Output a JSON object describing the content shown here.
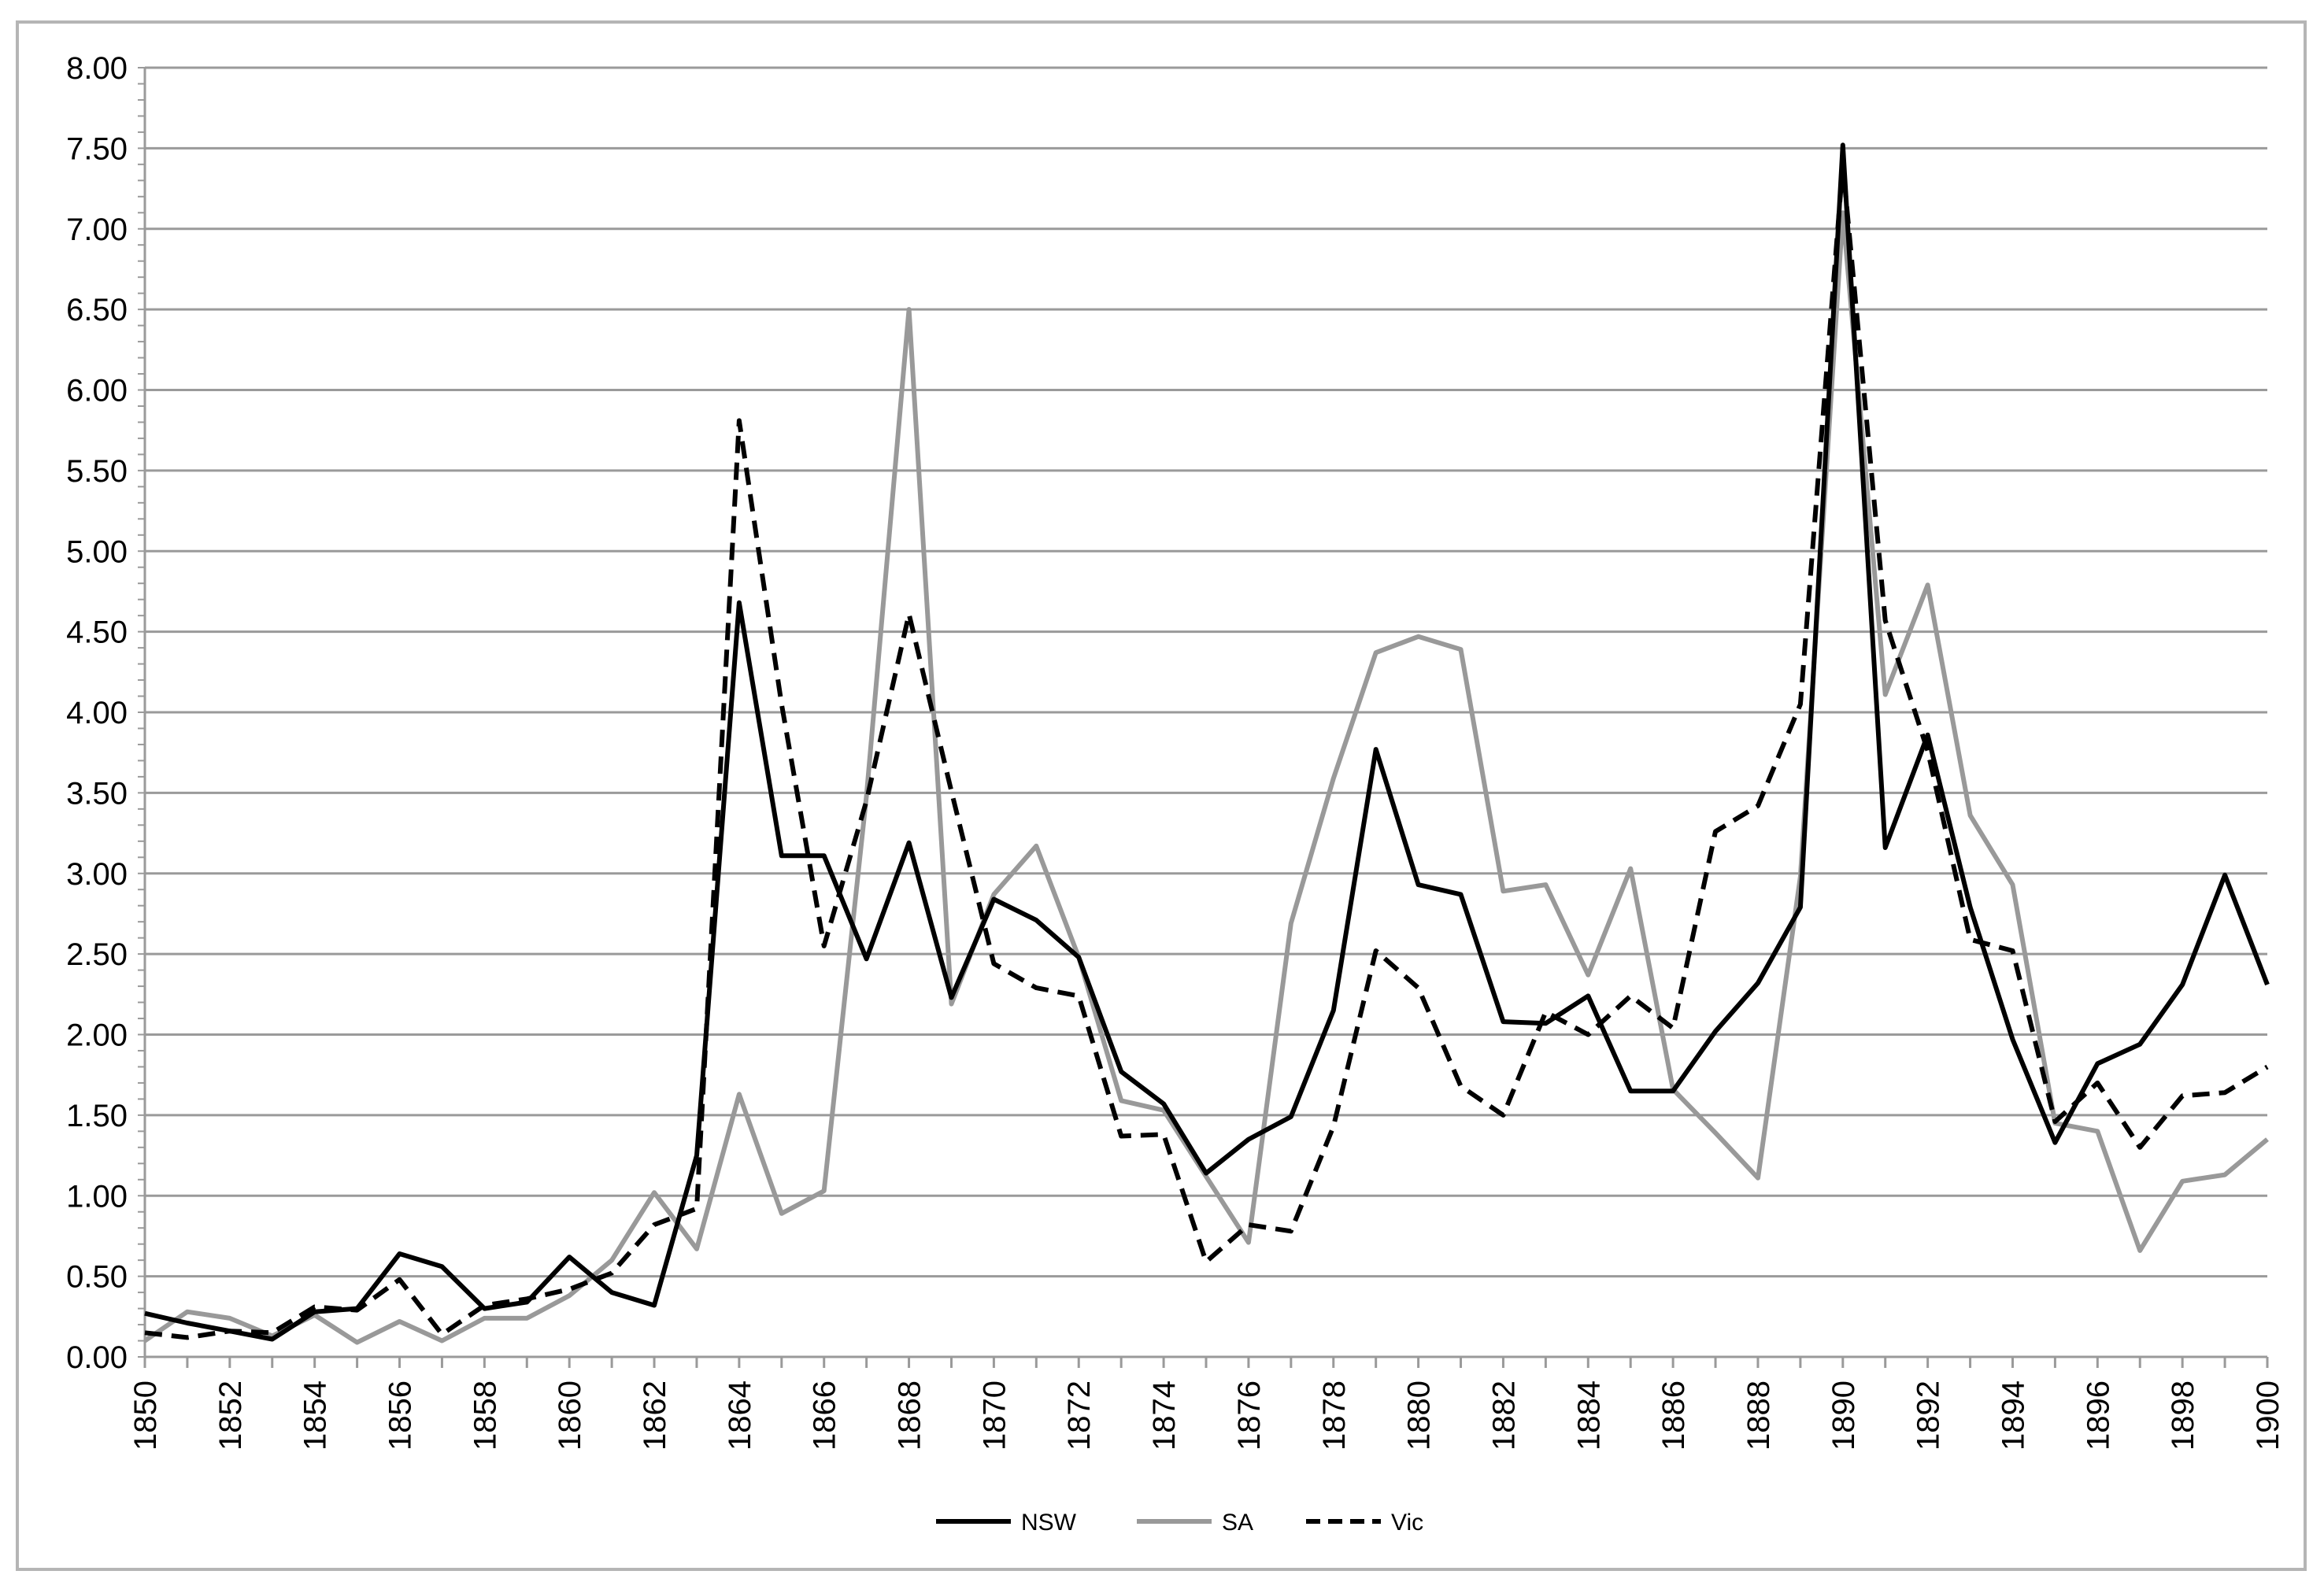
{
  "chart_data": {
    "type": "line",
    "title": "",
    "xlabel": "",
    "ylabel": "",
    "x": [
      1850,
      1851,
      1852,
      1853,
      1854,
      1855,
      1856,
      1857,
      1858,
      1859,
      1860,
      1861,
      1862,
      1863,
      1864,
      1865,
      1866,
      1867,
      1868,
      1869,
      1870,
      1871,
      1872,
      1873,
      1874,
      1875,
      1876,
      1877,
      1878,
      1879,
      1880,
      1881,
      1882,
      1883,
      1884,
      1885,
      1886,
      1887,
      1888,
      1889,
      1890,
      1891,
      1892,
      1893,
      1894,
      1895,
      1896,
      1897,
      1898,
      1899,
      1900
    ],
    "xticks": [
      "1850",
      "1852",
      "1854",
      "1856",
      "1858",
      "1860",
      "1862",
      "1864",
      "1866",
      "1868",
      "1870",
      "1872",
      "1874",
      "1876",
      "1878",
      "1880",
      "1882",
      "1884",
      "1886",
      "1888",
      "1890",
      "1892",
      "1894",
      "1896",
      "1898",
      "1900"
    ],
    "yticks": [
      "0.00",
      "0.50",
      "1.00",
      "1.50",
      "2.00",
      "2.50",
      "3.00",
      "3.50",
      "4.00",
      "4.50",
      "5.00",
      "5.50",
      "6.00",
      "6.50",
      "7.00",
      "7.50",
      "8.00"
    ],
    "ylim": [
      0,
      8
    ],
    "grid": true,
    "legend_position": "bottom",
    "series": [
      {
        "name": "NSW",
        "color": "#000000",
        "style": "solid",
        "values": [
          0.27,
          0.21,
          0.16,
          0.11,
          0.28,
          0.3,
          0.64,
          0.56,
          0.3,
          0.34,
          0.62,
          0.4,
          0.32,
          1.25,
          4.68,
          3.11,
          3.11,
          2.47,
          3.19,
          2.23,
          2.84,
          2.71,
          2.48,
          1.77,
          1.57,
          1.14,
          1.35,
          1.49,
          2.15,
          3.77,
          2.93,
          2.87,
          2.08,
          2.07,
          2.24,
          1.65,
          1.65,
          2.02,
          2.32,
          2.79,
          7.52,
          3.16,
          3.86,
          2.79,
          1.97,
          1.33,
          1.82,
          1.94,
          2.31,
          2.99,
          2.31
        ]
      },
      {
        "name": "SA",
        "color": "#999999",
        "style": "solid",
        "values": [
          0.1,
          0.28,
          0.24,
          0.13,
          0.26,
          0.09,
          0.22,
          0.1,
          0.24,
          0.24,
          0.38,
          0.6,
          1.02,
          0.67,
          1.63,
          0.89,
          1.03,
          3.48,
          6.5,
          2.19,
          2.87,
          3.17,
          2.48,
          1.59,
          1.53,
          1.12,
          0.71,
          2.69,
          3.59,
          4.37,
          4.47,
          4.39,
          2.89,
          2.93,
          2.37,
          3.03,
          1.66,
          1.39,
          1.11,
          2.98,
          7.1,
          4.11,
          4.79,
          3.36,
          2.93,
          1.45,
          1.4,
          0.66,
          1.09,
          1.13,
          1.35
        ]
      },
      {
        "name": "Vic",
        "color": "#000000",
        "style": "dashed",
        "values": [
          0.15,
          0.12,
          0.16,
          0.15,
          0.31,
          0.29,
          0.48,
          0.14,
          0.32,
          0.36,
          0.42,
          0.52,
          0.82,
          0.92,
          5.81,
          4.05,
          2.55,
          3.45,
          4.61,
          3.51,
          2.44,
          2.29,
          2.24,
          1.37,
          1.38,
          0.59,
          0.82,
          0.78,
          1.43,
          2.52,
          2.29,
          1.68,
          1.5,
          2.14,
          2.0,
          2.24,
          2.04,
          3.26,
          3.42,
          4.05,
          7.4,
          4.57,
          3.76,
          2.59,
          2.52,
          1.46,
          1.7,
          1.3,
          1.62,
          1.64,
          1.8
        ]
      }
    ]
  }
}
